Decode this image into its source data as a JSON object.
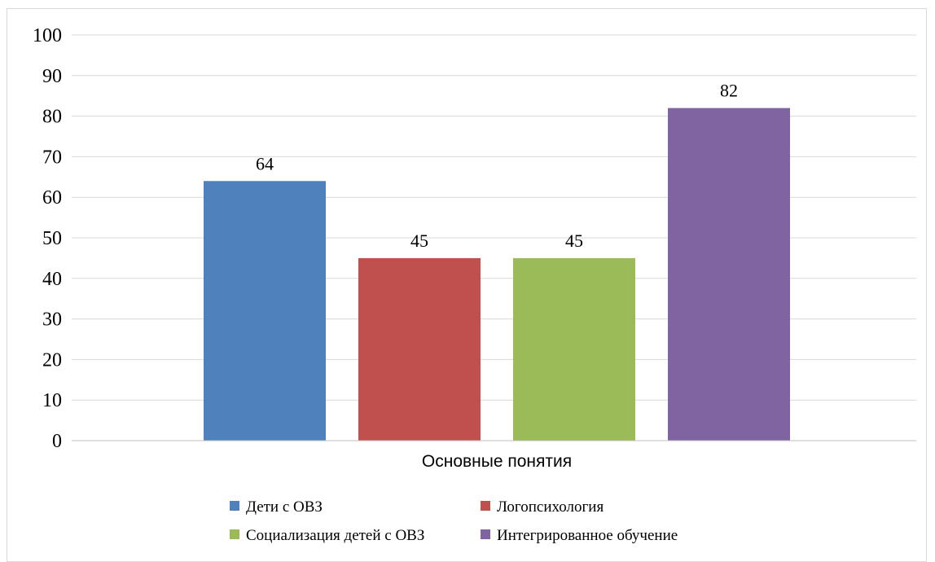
{
  "chart_data": {
    "type": "bar",
    "categories": [
      "Основные понятия"
    ],
    "series": [
      {
        "name": "Дети с ОВЗ",
        "values": [
          64
        ],
        "color": "#4F81BD"
      },
      {
        "name": "Логопсихология",
        "values": [
          45
        ],
        "color": "#C0504D"
      },
      {
        "name": "Социализация детей с ОВЗ",
        "values": [
          45
        ],
        "color": "#9BBB59"
      },
      {
        "name": "Интегрированное обучение",
        "values": [
          82
        ],
        "color": "#8064A2"
      }
    ],
    "ylim": [
      0,
      100
    ],
    "yticks": [
      0,
      10,
      20,
      30,
      40,
      50,
      60,
      70,
      80,
      90,
      100
    ],
    "title": "",
    "xlabel": "",
    "ylabel": "",
    "grid": true,
    "data_labels": true,
    "legend_position": "bottom"
  }
}
